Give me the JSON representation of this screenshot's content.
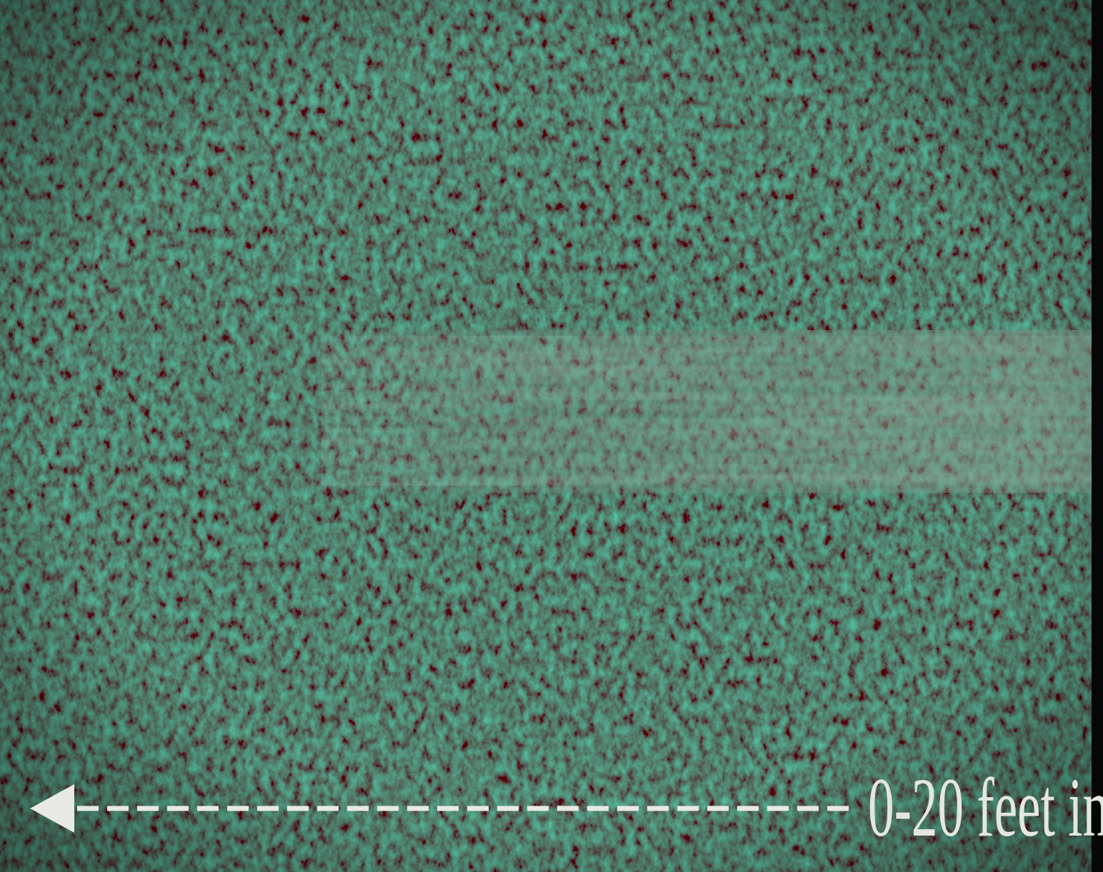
{
  "caption": "0-20 feet in"
}
